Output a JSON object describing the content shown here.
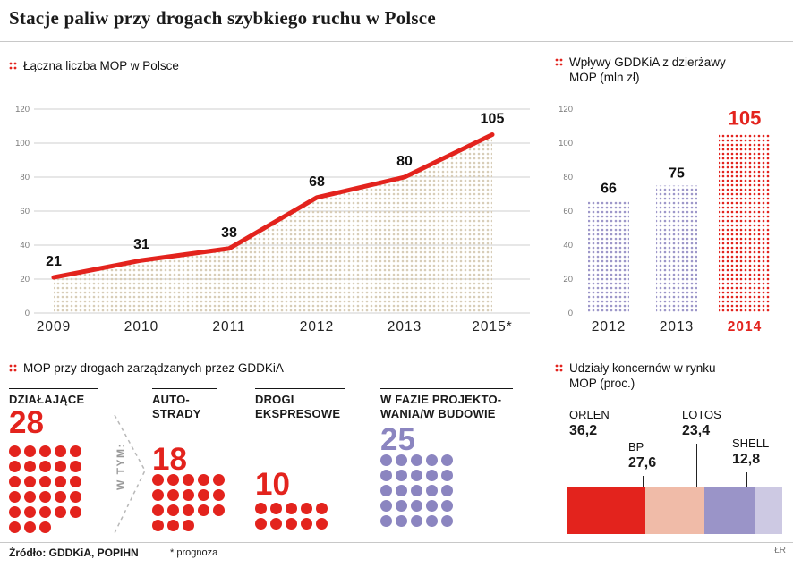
{
  "page_title": "Stacje paliw przy drogach szybkiego ruchu w Polsce",
  "footer": {
    "source": "Źródło: GDDKiA, POPIHN",
    "note": "* prognoza",
    "credit": "ŁR"
  },
  "colors": {
    "red": "#e3231d",
    "purple_bar": "#9d97c9",
    "purple_dot": "#8b85c0",
    "area_dot": "#d8cdb8",
    "grid": "#cfcfcf",
    "ink": "#1a1a1a"
  },
  "chart_data": [
    {
      "type": "line",
      "title": "Łączna liczba MOP w Polsce",
      "categories": [
        "2009",
        "2010",
        "2011",
        "2012",
        "2013",
        "2015*"
      ],
      "values": [
        21,
        31,
        38,
        68,
        80,
        105
      ],
      "ylim": [
        0,
        120
      ],
      "yticks": [
        0,
        20,
        40,
        60,
        80,
        100,
        120
      ],
      "grid": true,
      "area_fill": "dotted-beige",
      "line_color": "#e3231d",
      "legend_position": "none"
    },
    {
      "type": "bar",
      "title": "Wpływy GDDKiA z dzierżawy\nMOP (mln zł)",
      "categories": [
        "2012",
        "2013",
        "2014"
      ],
      "values": [
        66,
        75,
        105
      ],
      "ylim": [
        0,
        120
      ],
      "yticks": [
        0,
        20,
        40,
        60,
        80,
        100,
        120
      ],
      "grid": false,
      "bar_style": "dotted",
      "highlight_index": 2,
      "highlight_color": "#e3231d",
      "normal_color": "#9d97c9"
    },
    {
      "type": "pictogram",
      "title": "MOP przy drogach zarządzanych przez GDDKiA",
      "connector_label": "W TYM:",
      "groups": [
        {
          "label": "DZIAŁAJĄCE",
          "value": 28,
          "color_key": "red",
          "columns": 5
        },
        {
          "label": "AUTO-\nSTRADY",
          "value": 18,
          "color_key": "red",
          "columns": 5
        },
        {
          "label": "DROGI\nEKSPRESOWE",
          "value": 10,
          "color_key": "red",
          "columns": 5
        },
        {
          "label": "W FAZIE PROJEKTO-\nWANIA/W BUDOWIE",
          "value": 25,
          "color_key": "purple_dot",
          "columns": 5
        }
      ]
    },
    {
      "type": "stacked-bar",
      "title": "Udziały koncernów w rynku\nMOP (proc.)",
      "segments": [
        {
          "label": "ORLEN",
          "value_label": "36,2",
          "value": 36.2,
          "color": "#e3231d"
        },
        {
          "label": "BP",
          "value_label": "27,6",
          "value": 27.6,
          "color": "#f0bba8"
        },
        {
          "label": "LOTOS",
          "value_label": "23,4",
          "value": 23.4,
          "color": "#9a94c8"
        },
        {
          "label": "SHELL",
          "value_label": "12,8",
          "value": 12.8,
          "color": "#cdc9e3"
        }
      ]
    }
  ]
}
